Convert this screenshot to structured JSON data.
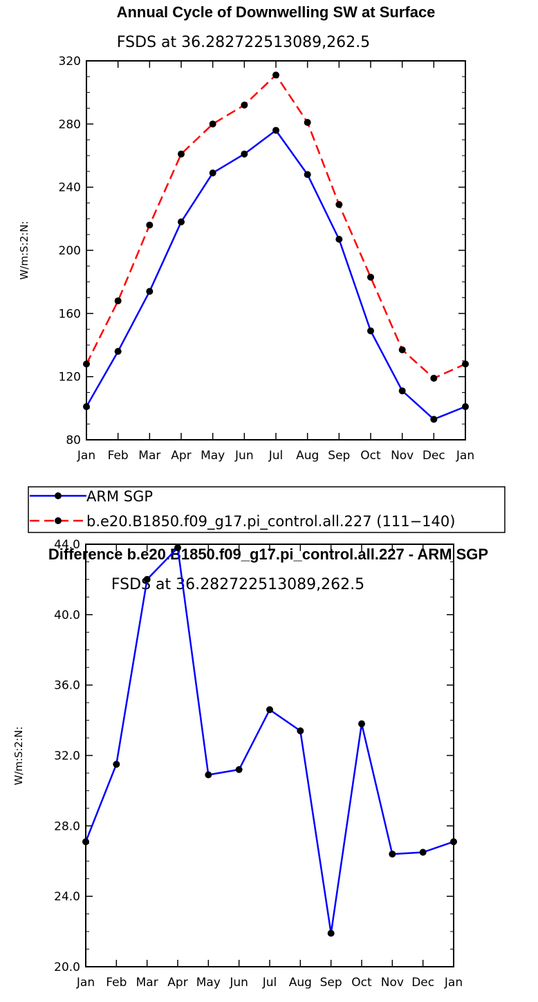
{
  "chart_data": [
    {
      "type": "line",
      "title": "Annual Cycle of Downwelling SW at Surface",
      "subtitle": "FSDS at 36.282722513089,262.5",
      "ylabel": "W/m:S:2:N:",
      "xlabel": "",
      "categories": [
        "Jan",
        "Feb",
        "Mar",
        "Apr",
        "May",
        "Jun",
        "Jul",
        "Aug",
        "Sep",
        "Oct",
        "Nov",
        "Dec",
        "Jan"
      ],
      "ylim": [
        80,
        320
      ],
      "yticks": [
        80,
        120,
        160,
        200,
        240,
        280,
        320
      ],
      "ytick_labels": [
        "80",
        "120",
        "160",
        "200",
        "240",
        "280",
        "320"
      ],
      "grid": false,
      "legend_position": "below",
      "series": [
        {
          "name": "ARM SGP",
          "color": "#0000ff",
          "dash": "solid",
          "values": [
            101,
            136,
            174,
            218,
            249,
            261,
            276,
            248,
            207,
            149,
            111,
            93,
            101
          ]
        },
        {
          "name": "b.e20.B1850.f09_g17.pi_control.all.227 (111−140)",
          "color": "#ff0000",
          "dash": "dashed",
          "values": [
            128,
            168,
            216,
            261,
            280,
            292,
            311,
            281,
            229,
            183,
            137,
            119,
            128
          ]
        }
      ]
    },
    {
      "type": "line",
      "title": "Difference b.e20.B1850.f09_g17.pi_control.all.227 - ARM SGP",
      "subtitle": "FSDS at 36.282722513089,262.5",
      "ylabel": "W/m:S:2:N:",
      "xlabel": "",
      "categories": [
        "Jan",
        "Feb",
        "Mar",
        "Apr",
        "May",
        "Jun",
        "Jul",
        "Aug",
        "Sep",
        "Oct",
        "Nov",
        "Dec",
        "Jan"
      ],
      "ylim": [
        20,
        44
      ],
      "yticks": [
        20,
        24,
        28,
        32,
        36,
        40,
        44
      ],
      "ytick_labels": [
        "20.0",
        "24.0",
        "28.0",
        "32.0",
        "36.0",
        "40.0",
        "44.0"
      ],
      "grid": false,
      "series": [
        {
          "color": "#0000ff",
          "dash": "solid",
          "values": [
            27.1,
            31.5,
            42.0,
            43.8,
            30.9,
            31.2,
            34.6,
            33.4,
            21.9,
            33.8,
            26.4,
            26.5,
            27.1
          ]
        }
      ]
    }
  ]
}
